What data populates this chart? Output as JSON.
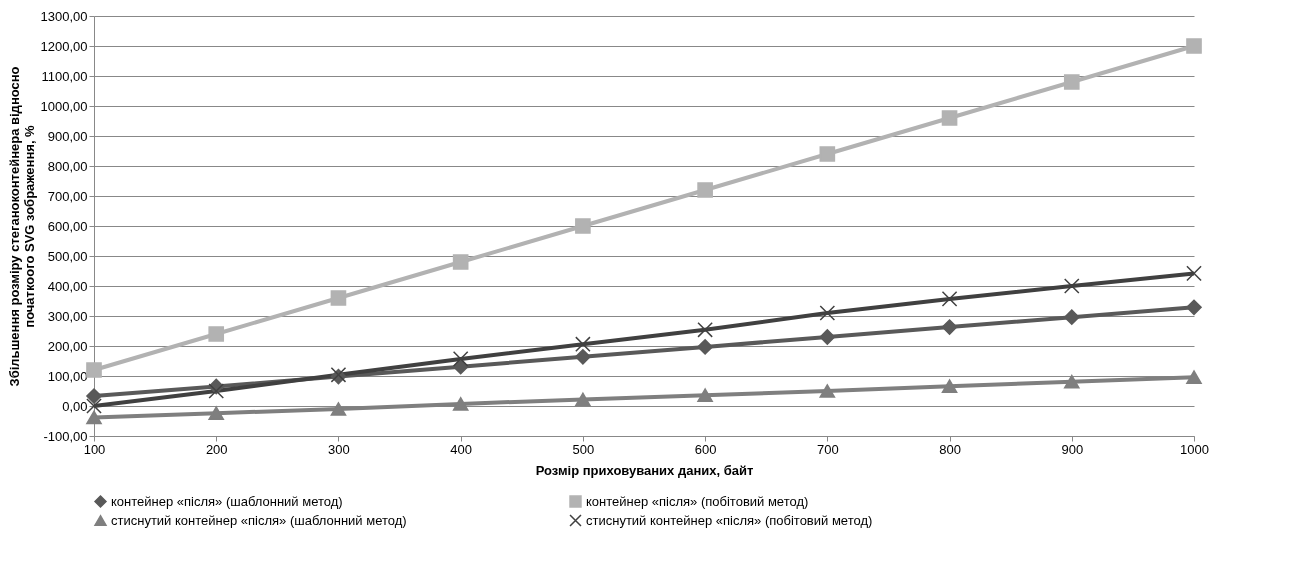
{
  "chart_data": {
    "type": "line",
    "xlabel": "Розмір приховуваних даних, байт",
    "ylabel": "Збільшення розміру стеганоконтейнера відносно початкоого  SVG  зображення, %",
    "x": [
      100,
      200,
      300,
      400,
      500,
      600,
      700,
      800,
      900,
      1000
    ],
    "xlim": [
      100,
      1000
    ],
    "xticks": [
      100,
      200,
      300,
      400,
      500,
      600,
      700,
      800,
      900,
      1000
    ],
    "ylim": [
      -100,
      1300
    ],
    "yticks": [
      {
        "value": -100,
        "label": "-100,00"
      },
      {
        "value": 0,
        "label": "0,00"
      },
      {
        "value": 100,
        "label": "100,00"
      },
      {
        "value": 200,
        "label": "200,00"
      },
      {
        "value": 300,
        "label": "300,00"
      },
      {
        "value": 400,
        "label": "400,00"
      },
      {
        "value": 500,
        "label": "500,00"
      },
      {
        "value": 600,
        "label": "600,00"
      },
      {
        "value": 700,
        "label": "700,00"
      },
      {
        "value": 800,
        "label": "800,00"
      },
      {
        "value": 900,
        "label": "900,00"
      },
      {
        "value": 1000,
        "label": "1000,00"
      },
      {
        "value": 1100,
        "label": "1100,00"
      },
      {
        "value": 1200,
        "label": "1200,00"
      },
      {
        "value": 1300,
        "label": "1300,00"
      }
    ],
    "grid": "y",
    "legend": "bottom",
    "series": [
      {
        "name": "контейнер «після» (шаблонний метод)",
        "color": "#595959",
        "marker": "diamond",
        "values": [
          33,
          65,
          98,
          131,
          164,
          197,
          230,
          263,
          296,
          329
        ]
      },
      {
        "name": "контейнер «після» (побітовий метод)",
        "color": "#b2b2b2",
        "marker": "square",
        "values": [
          120,
          240,
          360,
          480,
          600,
          720,
          840,
          960,
          1080,
          1200
        ]
      },
      {
        "name": "стиснутий контейнер «після» (шаблонний метод)",
        "color": "#7f7f7f",
        "marker": "triangle",
        "values": [
          -38,
          -24,
          -10,
          7,
          22,
          36,
          50,
          66,
          81,
          96
        ]
      },
      {
        "name": "стиснутий контейнер «після» (побітовий метод)",
        "color": "#404040",
        "marker": "cross",
        "values": [
          0,
          50,
          104,
          157,
          206,
          254,
          310,
          357,
          400,
          442
        ]
      }
    ]
  }
}
